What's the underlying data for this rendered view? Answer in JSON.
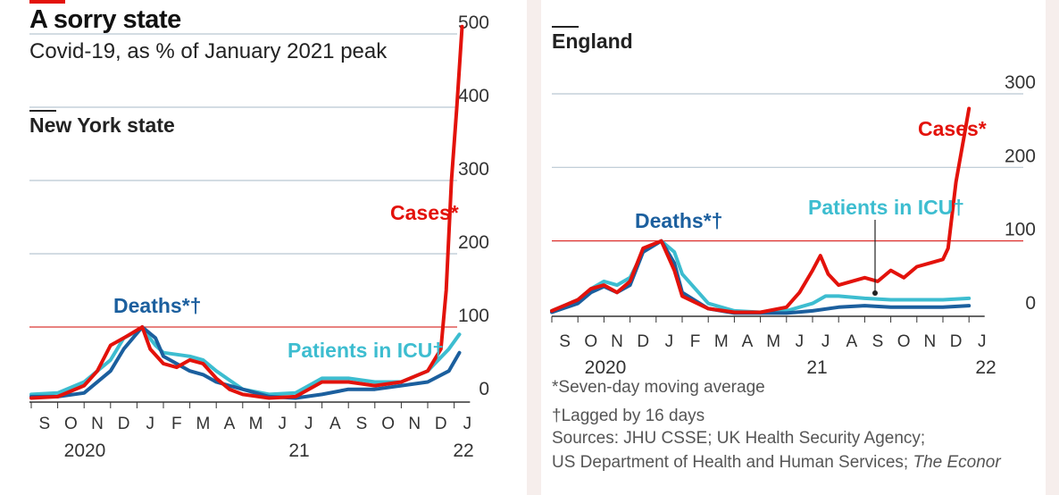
{
  "header": {
    "title": "A sorry state",
    "subtitle": "Covid-19, as % of January 2021 peak"
  },
  "footnotes": {
    "moving_average": "*Seven-day moving average",
    "lagged": "†Lagged by 16 days",
    "sources_line1": "Sources: JHU CSSE; UK Health Security Agency;",
    "sources_line2": "US Department of Health and Human Services;",
    "sources_publisher": "The Econor"
  },
  "colors": {
    "cases": "#e3120b",
    "deaths": "#1b5f9e",
    "icu": "#3dbdd0",
    "grid": "#b9c8d2",
    "reference": "#e3120b"
  },
  "chart_data": [
    {
      "type": "line",
      "region": "New York state",
      "ylim": [
        0,
        500
      ],
      "yticks": [
        0,
        100,
        200,
        300,
        400,
        500
      ],
      "reference_line": 100,
      "x_unit": "months since 1 Sep 2020",
      "xticks": [
        "S",
        "O",
        "N",
        "D",
        "J",
        "F",
        "M",
        "A",
        "M",
        "J",
        "J",
        "A",
        "S",
        "O",
        "N",
        "D",
        "J"
      ],
      "year_labels": [
        "2020",
        "21",
        "22"
      ],
      "series": [
        {
          "name": "Cases*",
          "key": "cases",
          "x": [
            0,
            1,
            2,
            2.5,
            3,
            3.5,
            4.2,
            4.5,
            5,
            5.5,
            6,
            6.5,
            7,
            7.5,
            8,
            9,
            10,
            10.5,
            11,
            12,
            13,
            14,
            15,
            15.5,
            15.7,
            15.9,
            16.1,
            16.3
          ],
          "y": [
            3,
            5,
            20,
            40,
            75,
            85,
            100,
            70,
            50,
            45,
            55,
            50,
            30,
            15,
            8,
            3,
            5,
            15,
            25,
            25,
            20,
            25,
            40,
            70,
            150,
            300,
            400,
            510
          ]
        },
        {
          "name": "Deaths*†",
          "key": "deaths",
          "x": [
            0,
            1,
            2,
            3,
            3.5,
            4.2,
            4.7,
            5,
            6,
            6.5,
            7,
            8,
            9,
            10,
            11,
            12,
            13,
            14,
            15,
            15.8,
            16.2
          ],
          "y": [
            5,
            5,
            10,
            40,
            70,
            100,
            85,
            60,
            40,
            35,
            25,
            15,
            5,
            3,
            8,
            15,
            15,
            20,
            25,
            40,
            65
          ]
        },
        {
          "name": "Patients in ICU†",
          "key": "icu",
          "x": [
            0,
            1,
            2,
            3,
            3.5,
            4.2,
            4.7,
            5,
            6,
            6.5,
            7,
            8,
            9,
            10,
            10.5,
            11,
            12,
            13,
            14,
            15,
            15.8,
            16.2
          ],
          "y": [
            8,
            10,
            25,
            55,
            85,
            98,
            75,
            65,
            60,
            55,
            40,
            15,
            8,
            10,
            20,
            30,
            30,
            25,
            25,
            40,
            70,
            90
          ]
        }
      ]
    },
    {
      "type": "line",
      "region": "England",
      "ylim": [
        0,
        300
      ],
      "yticks": [
        0,
        100,
        200,
        300
      ],
      "reference_line": 100,
      "x_unit": "months since 1 Sep 2020",
      "xticks": [
        "S",
        "O",
        "N",
        "D",
        "J",
        "F",
        "M",
        "A",
        "M",
        "J",
        "J",
        "A",
        "S",
        "O",
        "N",
        "D",
        "J"
      ],
      "year_labels": [
        "2020",
        "21",
        "22"
      ],
      "series": [
        {
          "name": "Cases*",
          "key": "cases",
          "x": [
            0,
            1,
            1.5,
            2,
            2.5,
            3,
            3.5,
            4.2,
            4.7,
            5,
            6,
            7,
            8,
            9,
            9.5,
            10,
            10.3,
            10.6,
            11,
            11.5,
            12,
            12.5,
            13,
            13.5,
            14,
            14.5,
            15,
            15.2,
            15.5,
            15.8,
            16
          ],
          "y": [
            5,
            20,
            35,
            40,
            30,
            45,
            90,
            100,
            60,
            25,
            8,
            3,
            3,
            10,
            30,
            60,
            80,
            55,
            40,
            45,
            50,
            45,
            60,
            50,
            65,
            70,
            75,
            90,
            180,
            240,
            280
          ]
        },
        {
          "name": "Deaths*†",
          "key": "deaths",
          "x": [
            0,
            1,
            1.5,
            2,
            2.5,
            3,
            3.5,
            4.2,
            4.7,
            5,
            6,
            7,
            8,
            9,
            10,
            11,
            12,
            13,
            14,
            15,
            16
          ],
          "y": [
            3,
            15,
            30,
            38,
            30,
            40,
            85,
            100,
            70,
            30,
            8,
            2,
            2,
            2,
            5,
            10,
            12,
            10,
            10,
            10,
            12
          ]
        },
        {
          "name": "Patients in ICU†",
          "key": "icu",
          "x": [
            0,
            1,
            1.5,
            2,
            2.5,
            3,
            3.5,
            4.2,
            4.7,
            5,
            6,
            7,
            8,
            9,
            10,
            10.5,
            11,
            12,
            13,
            14,
            15,
            16
          ],
          "y": [
            5,
            20,
            35,
            45,
            40,
            50,
            85,
            100,
            85,
            55,
            15,
            5,
            3,
            5,
            15,
            25,
            25,
            22,
            20,
            20,
            20,
            22
          ]
        }
      ]
    }
  ]
}
